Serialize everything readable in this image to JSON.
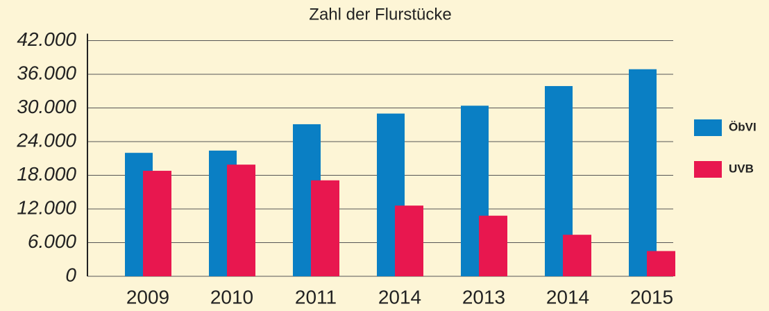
{
  "chart_data": {
    "type": "bar",
    "title": "Zahl der Flurstücke",
    "categories": [
      "2009",
      "2010",
      "2011",
      "2014",
      "2013",
      "2014",
      "2015"
    ],
    "series": [
      {
        "name": "ÖbVI",
        "color": "#0a7fc4",
        "values": [
          22000,
          22400,
          27100,
          29000,
          30400,
          33900,
          36900
        ]
      },
      {
        "name": "UVB",
        "color": "#e8174f",
        "values": [
          18800,
          19900,
          17100,
          12600,
          10800,
          7400,
          4500
        ]
      }
    ],
    "ylim": [
      0,
      42000
    ],
    "yticks": [
      0,
      {
        "value": 6000,
        "label": "6.000"
      },
      {
        "value": 12000,
        "label": "12.000"
      },
      {
        "value": 18000,
        "label": "18.000"
      },
      {
        "value": 24000,
        "label": "24.000"
      },
      {
        "value": 30000,
        "label": "30.000"
      },
      {
        "value": 36000,
        "label": "36.000"
      },
      {
        "value": 42000,
        "label": "42.000"
      }
    ],
    "grid": true,
    "legend": "right"
  }
}
